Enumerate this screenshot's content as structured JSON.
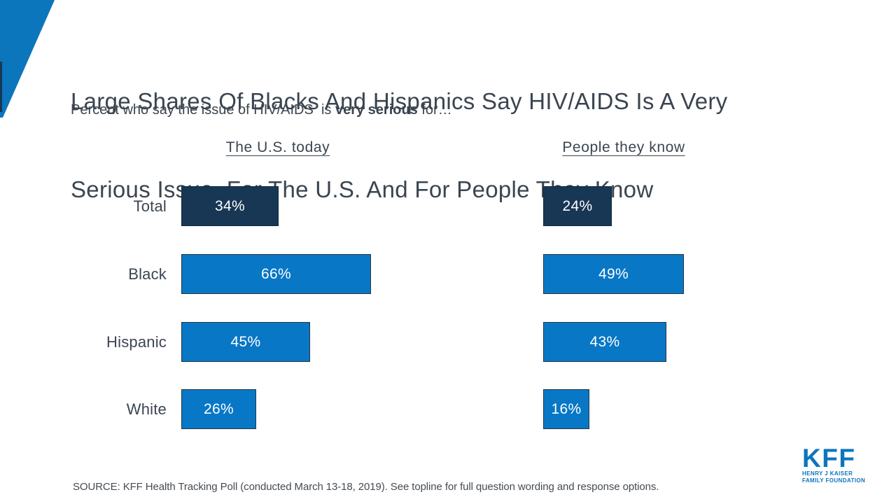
{
  "slide": {
    "title_line1": "Large Shares Of Blacks And Hispanics Say HIV/AIDS Is A Very",
    "title_line2": "Serious Issue  For The U.S. And For People They Know",
    "subtitle_prefix": "Percent who say the issue of HIV/AIDS  is ",
    "subtitle_bold": "very serious",
    "subtitle_suffix": " for…",
    "source": "SOURCE: KFF Health Tracking Poll (conducted March 13-18, 2019). See topline for full question wording and response options."
  },
  "logo": {
    "word": "KFF",
    "line1": "HENRY J KAISER",
    "line2": "FAMILY FOUNDATION"
  },
  "colors": {
    "brand_blue": "#0C76BC",
    "bar_blue": "#0877C5",
    "bar_navy": "#183755",
    "text_dark": "#3B4550"
  },
  "chart_data": {
    "type": "bar",
    "orientation": "horizontal",
    "title": "Large Shares Of Blacks And Hispanics Say HIV/AIDS Is A Very Serious Issue For The U.S. And For People They Know",
    "subtitle": "Percent who say the issue of HIV/AIDS is very serious for…",
    "categories": [
      "Total",
      "Black",
      "Hispanic",
      "White"
    ],
    "series": [
      {
        "name": "The U.S. today",
        "values": [
          34,
          66,
          45,
          26
        ]
      },
      {
        "name": "People they know",
        "values": [
          24,
          49,
          43,
          16
        ]
      }
    ],
    "unit": "%",
    "xlim": [
      0,
      100
    ],
    "grid": false,
    "legend": "none",
    "value_labels": "inside-center",
    "bar_colors": {
      "total_row": "#183755",
      "other_rows": "#0877C5"
    }
  }
}
